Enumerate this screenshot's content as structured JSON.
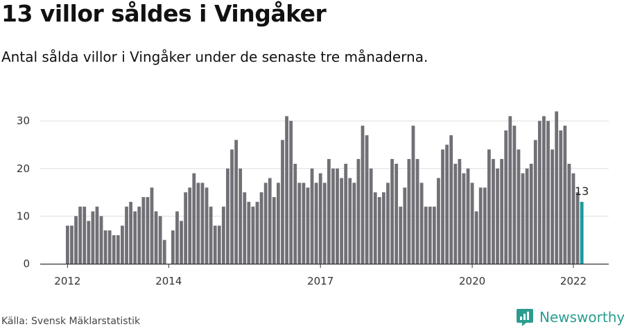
{
  "header": {
    "title": "13 villor såldes i Vingåker",
    "subtitle": "Antal sålda villor i Vingåker under de senaste tre månaderna."
  },
  "footer": {
    "source": "Källa: Svensk Mäklarstatistik",
    "brand": "Newsworthy",
    "brand_icon": "newsworthy-logo-icon"
  },
  "colors": {
    "bar": "#717076",
    "highlight": "#1a9a9a",
    "grid": "#dddddd",
    "axis": "#333333",
    "brand": "#2a9d8f"
  },
  "chart_data": {
    "type": "bar",
    "x_start": "2012-01",
    "x_interval": "month",
    "xticks": [
      {
        "label": "2012",
        "index": 0
      },
      {
        "label": "2014",
        "index": 24
      },
      {
        "label": "2017",
        "index": 60
      },
      {
        "label": "2020",
        "index": 96
      },
      {
        "label": "2022",
        "index": 120
      }
    ],
    "values": [
      8,
      8,
      10,
      12,
      12,
      9,
      11,
      12,
      10,
      7,
      7,
      6,
      6,
      8,
      12,
      13,
      11,
      12,
      14,
      14,
      16,
      11,
      10,
      5,
      0,
      7,
      11,
      9,
      15,
      16,
      19,
      17,
      17,
      16,
      12,
      8,
      8,
      12,
      20,
      24,
      26,
      20,
      15,
      13,
      12,
      13,
      15,
      17,
      18,
      14,
      17,
      26,
      31,
      30,
      21,
      17,
      17,
      16,
      20,
      17,
      19,
      17,
      22,
      20,
      20,
      18,
      21,
      18,
      17,
      22,
      29,
      27,
      20,
      15,
      14,
      15,
      17,
      22,
      21,
      12,
      16,
      22,
      29,
      22,
      17,
      12,
      12,
      12,
      18,
      24,
      25,
      27,
      21,
      22,
      19,
      20,
      17,
      11,
      16,
      16,
      24,
      22,
      20,
      22,
      28,
      31,
      29,
      24,
      19,
      20,
      21,
      26,
      30,
      31,
      30,
      24,
      32,
      28,
      29,
      21,
      19,
      15,
      13
    ],
    "highlight_last": true,
    "last_label": "13",
    "yticks": [
      0,
      10,
      20,
      30
    ],
    "ylim": [
      0,
      34
    ],
    "grid": true,
    "title": "",
    "xlabel": "",
    "ylabel": ""
  }
}
